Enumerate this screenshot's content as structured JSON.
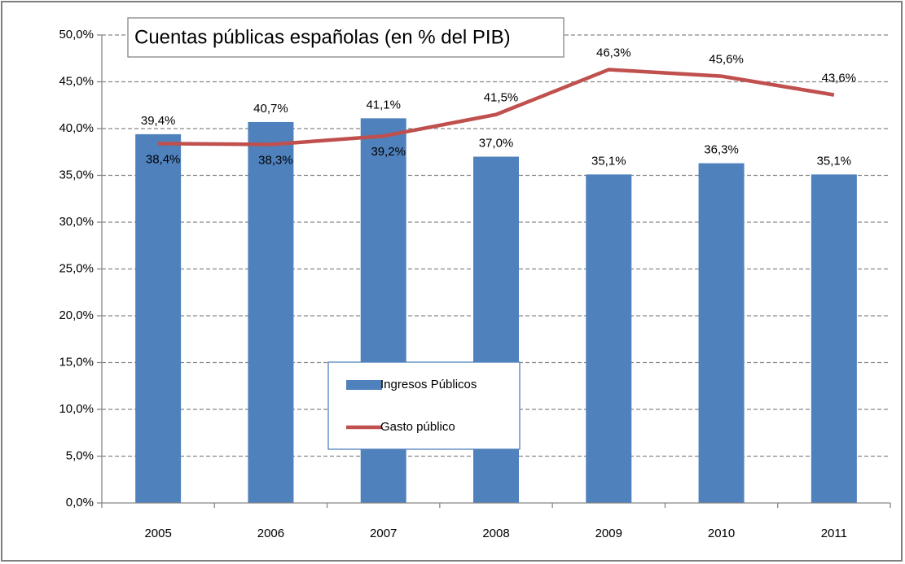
{
  "chart_data": {
    "type": "combo",
    "title": "Cuentas públicas españolas (en % del PIB)",
    "categories": [
      "2005",
      "2006",
      "2007",
      "2008",
      "2009",
      "2010",
      "2011"
    ],
    "series": [
      {
        "name": "Ingresos Públicos",
        "type": "bar",
        "color": "#4f81bd",
        "values": [
          39.4,
          40.7,
          41.1,
          37.0,
          35.1,
          36.3,
          35.1
        ],
        "value_labels": [
          "39,4%",
          "40,7%",
          "41,1%",
          "37,0%",
          "35,1%",
          "36,3%",
          "35,1%"
        ]
      },
      {
        "name": "Gasto público",
        "type": "line",
        "color": "#c0504d",
        "values": [
          38.4,
          38.3,
          39.2,
          41.5,
          46.3,
          45.6,
          43.6
        ],
        "value_labels": [
          "38,4%",
          "38,3%",
          "39,2%",
          "41,5%",
          "46,3%",
          "45,6%",
          "43,6%"
        ]
      }
    ],
    "ylim": [
      0,
      50
    ],
    "yticks": [
      {
        "value": 0,
        "label": "0,0%"
      },
      {
        "value": 5,
        "label": "5,0%"
      },
      {
        "value": 10,
        "label": "10,0%"
      },
      {
        "value": 15,
        "label": "15,0%"
      },
      {
        "value": 20,
        "label": "20,0%"
      },
      {
        "value": 25,
        "label": "25,0%"
      },
      {
        "value": 30,
        "label": "30,0%"
      },
      {
        "value": 35,
        "label": "35,0%"
      },
      {
        "value": 40,
        "label": "40,0%"
      },
      {
        "value": 45,
        "label": "45,0%"
      },
      {
        "value": 50,
        "label": "50,0%"
      }
    ],
    "grid": true,
    "legend": "center"
  }
}
